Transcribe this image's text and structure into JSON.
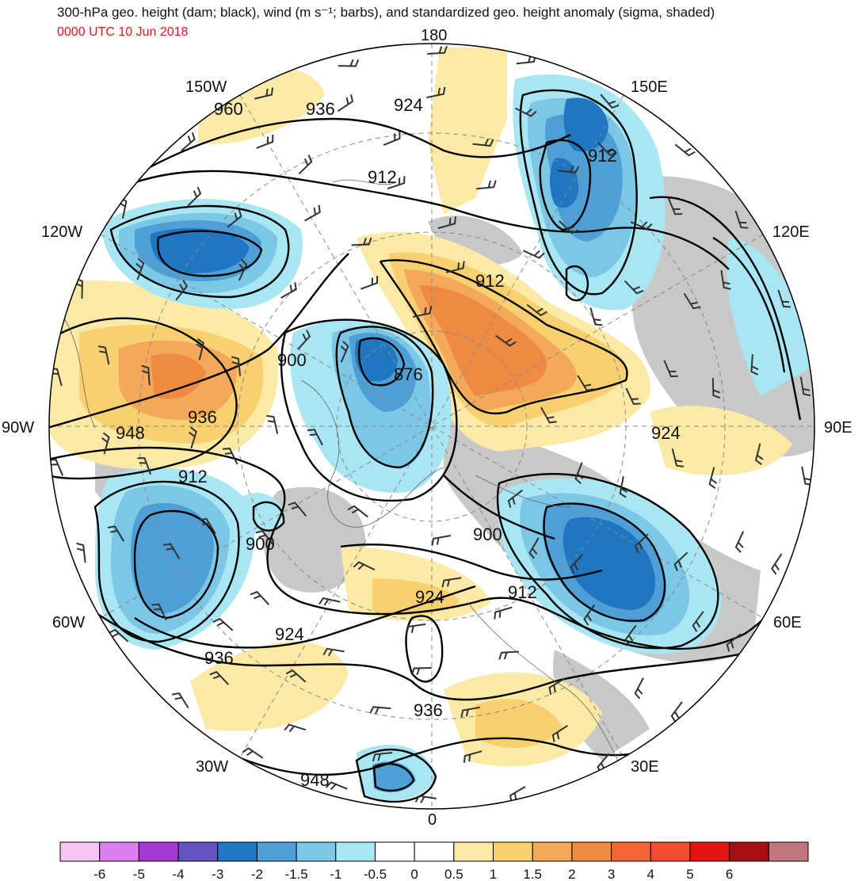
{
  "header": {
    "title": "300-hPa geo. height (dam; black), wind (m s⁻¹; barbs), and standardized geo. height anomaly (sigma, shaded)",
    "timestamp": "0000 UTC 10 Jun 2018"
  },
  "map": {
    "projection": "north-polar-stereographic",
    "longitude_labels": {
      "top": "180",
      "bottom": "0",
      "left": "90W",
      "right": "90E",
      "upper_left": "150W",
      "upper_right": "150E",
      "mid_upper_left": "120W",
      "mid_upper_right": "120E",
      "mid_lower_left": "60W",
      "mid_lower_right": "60E",
      "lower_left": "30W",
      "lower_right": "30E"
    },
    "contour_labels": {
      "c1": "960",
      "c2": "936",
      "c3": "924",
      "c4": "912",
      "c5": "912",
      "c6": "912",
      "c7": "900",
      "c8": "876",
      "c9": "948",
      "c10": "936",
      "c11": "924",
      "c12": "912",
      "c13": "900",
      "c14": "900",
      "c15": "924",
      "c16": "912",
      "c17": "924",
      "c18": "936",
      "c19": "936",
      "c20": "948"
    },
    "colors": {
      "pos_0_5": "#fbe9a6",
      "pos_1": "#f8d070",
      "pos_1_5": "#f3a85a",
      "pos_2": "#ef8a43",
      "neg_0_5": "#a9e6f3",
      "neg_1": "#7cc6e6",
      "neg_1_5": "#4f9fd7",
      "neg_2": "#1f76c1",
      "gray": "#c8c8c8"
    }
  },
  "colorbar": {
    "colors": [
      "#f6c4f3",
      "#dc7ef0",
      "#a43ad2",
      "#6452c0",
      "#1f78c4",
      "#4f9fd7",
      "#7cc6e6",
      "#a9e6f3",
      "#ffffff",
      "#ffffff",
      "#fbe9a6",
      "#f8d070",
      "#f3a85a",
      "#ef8a43",
      "#f16633",
      "#f24d2f",
      "#e41414",
      "#a50f0f",
      "#c0767f"
    ],
    "tick_labels": [
      "-6",
      "-5",
      "-4",
      "-3",
      "-2",
      "-1.5",
      "-1",
      "-0.5",
      "0",
      "0.5",
      "1",
      "1.5",
      "2",
      "3",
      "4",
      "5",
      "6"
    ]
  }
}
